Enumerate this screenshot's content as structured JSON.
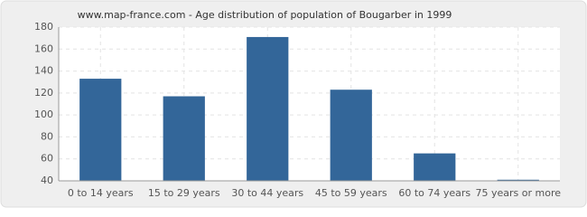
{
  "chart_data": {
    "type": "bar",
    "title": "www.map-france.com - Age distribution of population of Bougarber in 1999",
    "categories": [
      "0 to 14 years",
      "15 to 29 years",
      "30 to 44 years",
      "45 to 59 years",
      "60 to 74 years",
      "75 years or more"
    ],
    "values": [
      133,
      117,
      171,
      123,
      65,
      41
    ],
    "color": "#336699",
    "ylim": [
      40,
      180
    ],
    "yticks": [
      40,
      60,
      80,
      100,
      120,
      140,
      160,
      180
    ],
    "grid": true
  }
}
